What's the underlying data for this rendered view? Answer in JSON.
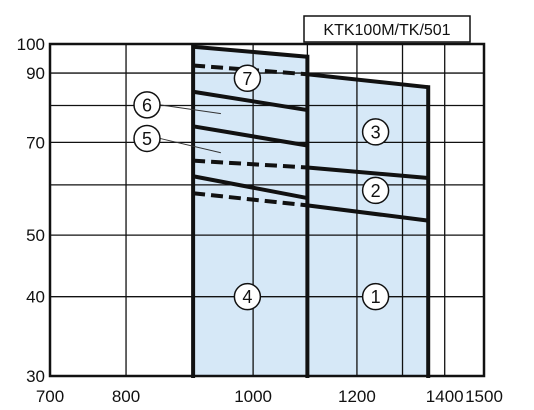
{
  "chart_data": {
    "type": "area",
    "title": "KTK100M/TK/501",
    "xlabel": "",
    "ylabel": "",
    "xscale": "log",
    "yscale": "log",
    "xlim": [
      700,
      1500
    ],
    "ylim": [
      30,
      100
    ],
    "x_ticks": [
      700,
      800,
      1000,
      1200,
      1400,
      1500
    ],
    "y_ticks": [
      30,
      40,
      50,
      70,
      90,
      100
    ],
    "grid": true,
    "colors": {
      "region": "#d6e8f7",
      "line": "#111111",
      "grid": "#111111"
    },
    "regions": [
      {
        "name": "left-region",
        "polygon": [
          [
            900,
            30
          ],
          [
            900,
            99
          ],
          [
            1100,
            95.5
          ],
          [
            1100,
            30
          ]
        ]
      },
      {
        "name": "right-region",
        "polygon": [
          [
            1100,
            30
          ],
          [
            1100,
            89.6
          ],
          [
            1360,
            85.5
          ],
          [
            1360,
            30
          ]
        ]
      }
    ],
    "vertical_lines": [
      {
        "x": 900,
        "y0": 30,
        "y1": 99
      },
      {
        "x": 1100,
        "y0": 30,
        "y1": 95.5
      },
      {
        "x": 1360,
        "y0": 30,
        "y1": 85.5
      }
    ],
    "series": [
      {
        "style": "solid",
        "x": [
          900,
          1100
        ],
        "y": [
          99,
          95.5
        ]
      },
      {
        "style": "solid",
        "x": [
          1100,
          1360
        ],
        "y": [
          89.6,
          85.5
        ]
      },
      {
        "style": "dashed",
        "x": [
          900,
          1100
        ],
        "y": [
          92.5,
          89.6
        ]
      },
      {
        "style": "solid",
        "x": [
          900,
          1100
        ],
        "y": [
          84.1,
          78.7
        ]
      },
      {
        "style": "solid",
        "x": [
          900,
          1100
        ],
        "y": [
          74.2,
          69.2
        ]
      },
      {
        "style": "dashed",
        "x": [
          900,
          1100
        ],
        "y": [
          65.5,
          63.9
        ]
      },
      {
        "style": "solid",
        "x": [
          1100,
          1360
        ],
        "y": [
          63.9,
          61.5
        ]
      },
      {
        "style": "solid",
        "x": [
          900,
          1100
        ],
        "y": [
          61.9,
          57.2
        ]
      },
      {
        "style": "dashed",
        "x": [
          900,
          1100
        ],
        "y": [
          58.2,
          55.7
        ]
      },
      {
        "style": "solid",
        "x": [
          1100,
          1360
        ],
        "y": [
          55.7,
          52.7
        ]
      }
    ],
    "annotations": [
      {
        "label": "1",
        "x": 1240,
        "y": 40,
        "leader": null
      },
      {
        "label": "2",
        "x": 1240,
        "y": 58.8,
        "leader": null
      },
      {
        "label": "3",
        "x": 1240,
        "y": 72.7,
        "leader": null
      },
      {
        "label": "4",
        "x": 990,
        "y": 40,
        "leader": null
      },
      {
        "label": "5",
        "x": 830,
        "y": 71,
        "leader": {
          "x": 945,
          "y": 67.4
        }
      },
      {
        "label": "6",
        "x": 830,
        "y": 80.2,
        "leader": {
          "x": 945,
          "y": 77.7
        }
      },
      {
        "label": "7",
        "x": 990,
        "y": 88.3,
        "leader": null
      }
    ]
  }
}
